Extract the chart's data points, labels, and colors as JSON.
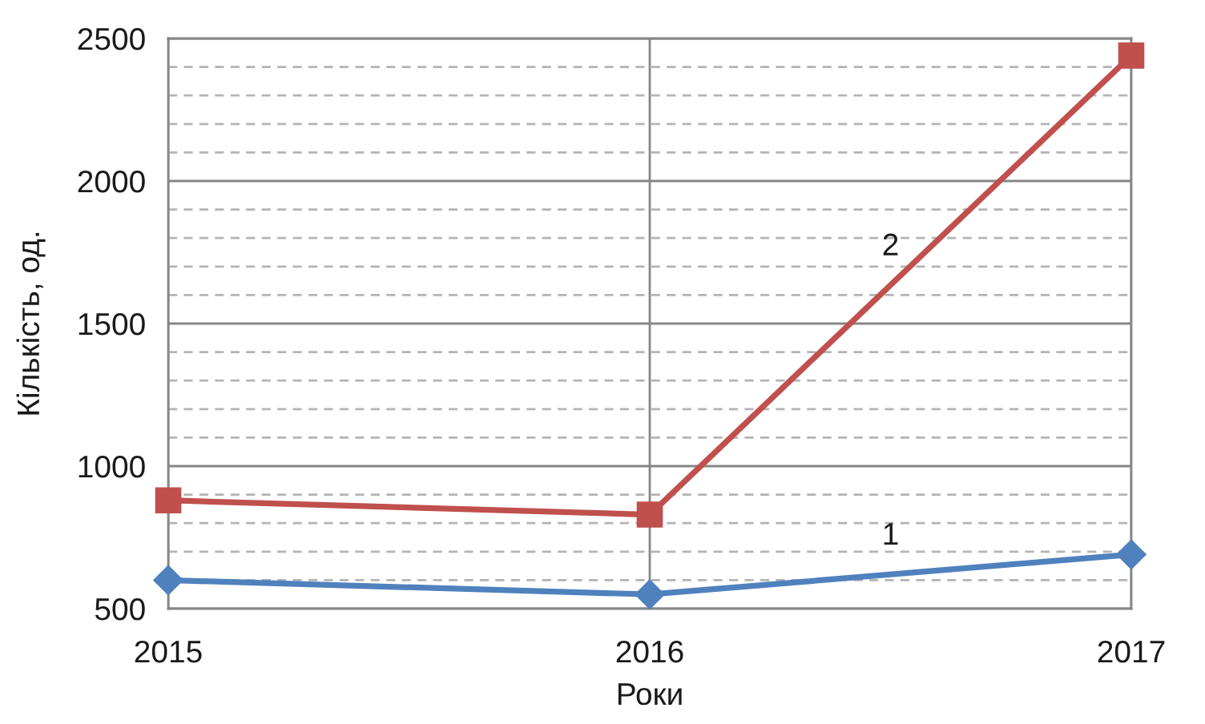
{
  "chart_data": {
    "type": "line",
    "xlabel": "Роки",
    "ylabel": "Кількість, од.",
    "x": [
      2015,
      2016,
      2017
    ],
    "xlim": [
      2015,
      2017
    ],
    "xticks": [
      2015,
      2016,
      2017
    ],
    "ylim": [
      500,
      2500
    ],
    "yticks": [
      500,
      {
        "value": 600,
        "label": null
      },
      {
        "value": 700,
        "label": null
      },
      {
        "value": 800,
        "label": null
      },
      {
        "value": 900,
        "label": null
      },
      1000,
      {
        "value": 1100,
        "label": null
      },
      {
        "value": 1200,
        "label": null
      },
      {
        "value": 1300,
        "label": null
      },
      {
        "value": 1400,
        "label": null
      },
      1500,
      {
        "value": 1600,
        "label": null
      },
      {
        "value": 1700,
        "label": null
      },
      {
        "value": 1800,
        "label": null
      },
      {
        "value": 1900,
        "label": null
      },
      2000,
      {
        "value": 2100,
        "label": null
      },
      {
        "value": 2200,
        "label": null
      },
      {
        "value": 2300,
        "label": null
      },
      {
        "value": 2400,
        "label": null
      },
      2500
    ],
    "grid": true,
    "line_style": "solid",
    "series": [
      {
        "name": "1",
        "color": "#4f81bd",
        "marker": "diamond",
        "values": [
          600,
          550,
          690
        ]
      },
      {
        "name": "2",
        "color": "#c0504d",
        "marker": "square",
        "values": [
          880,
          830,
          2440
        ]
      }
    ]
  }
}
